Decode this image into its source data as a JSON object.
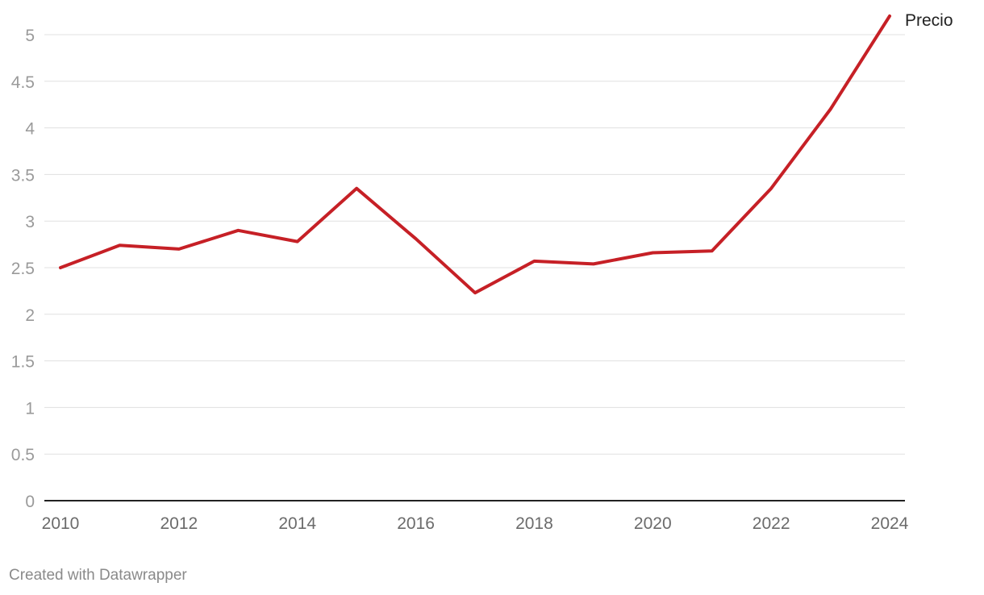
{
  "chart_data": {
    "type": "line",
    "x": [
      2010,
      2011,
      2012,
      2013,
      2014,
      2015,
      2016,
      2017,
      2018,
      2019,
      2020,
      2021,
      2022,
      2023,
      2024
    ],
    "series": [
      {
        "name": "Precio",
        "values": [
          2.5,
          2.74,
          2.7,
          2.9,
          2.78,
          3.35,
          2.81,
          2.23,
          2.57,
          2.54,
          2.66,
          2.68,
          3.35,
          4.2,
          5.2
        ],
        "color": "#c62026"
      }
    ],
    "y_ticks": [
      "0",
      "0.5",
      "1",
      "1.5",
      "2",
      "2.5",
      "3",
      "3.5",
      "4",
      "4.5",
      "5"
    ],
    "x_ticks": [
      "2010",
      "2012",
      "2014",
      "2016",
      "2018",
      "2020",
      "2022",
      "2024"
    ],
    "ylim": [
      0,
      5.2
    ],
    "xlim": [
      2010,
      2024
    ],
    "grid": true,
    "legend": "direct label at line end",
    "title": "",
    "xlabel": "",
    "ylabel": ""
  },
  "footer": {
    "credit": "Created with Datawrapper"
  }
}
